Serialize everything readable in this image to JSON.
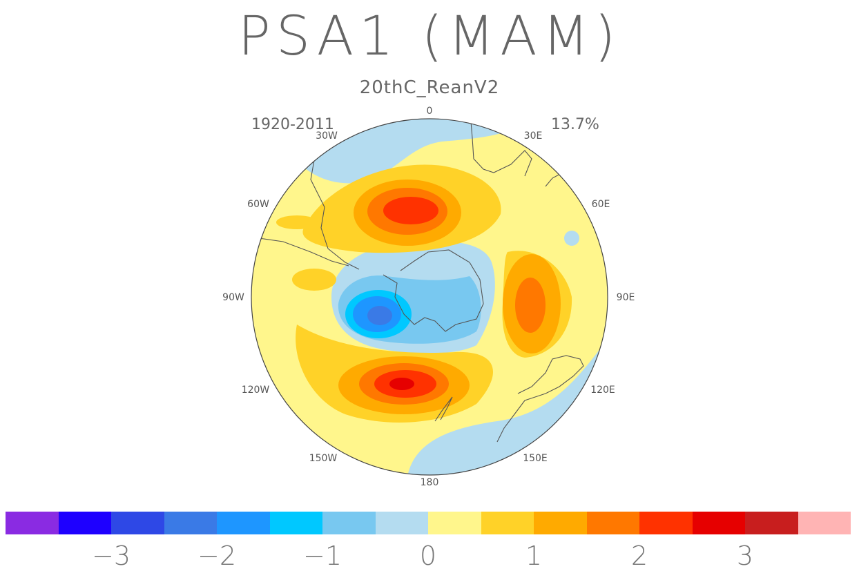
{
  "title": "PSA1 (MAM)",
  "subtitle": "20thC_ReanV2",
  "period": "1920-2011",
  "variance_explained": "13.7%",
  "map": {
    "projection": "south-polar-stereographic",
    "longitude_labels": [
      "0",
      "30E",
      "60E",
      "90E",
      "120E",
      "150E",
      "180",
      "150W",
      "120W",
      "90W",
      "60W",
      "30W"
    ],
    "anomaly_centers": [
      {
        "sign": "positive",
        "value": 2.6,
        "region": "south of Africa / South Atlantic"
      },
      {
        "sign": "positive",
        "value": 1.8,
        "region": "South Indian Ocean (east)"
      },
      {
        "sign": "positive",
        "value": 2.8,
        "region": "South Pacific east of New Zealand"
      },
      {
        "sign": "negative",
        "value": -2.2,
        "region": "Amundsen-Bellingshausen Sea"
      }
    ]
  },
  "colorbar": {
    "colors": [
      "#8a2be2",
      "#1e00ff",
      "#2e48e6",
      "#3a7ae6",
      "#1e96ff",
      "#00c8ff",
      "#78c8f0",
      "#b4dcf0",
      "#fff68c",
      "#ffd228",
      "#ffaa00",
      "#ff7800",
      "#ff3200",
      "#e60000",
      "#c81e1e",
      "#ffb4b4"
    ],
    "tick_labels": [
      "−3",
      "−2",
      "−1",
      "0",
      "1",
      "2",
      "3"
    ]
  }
}
